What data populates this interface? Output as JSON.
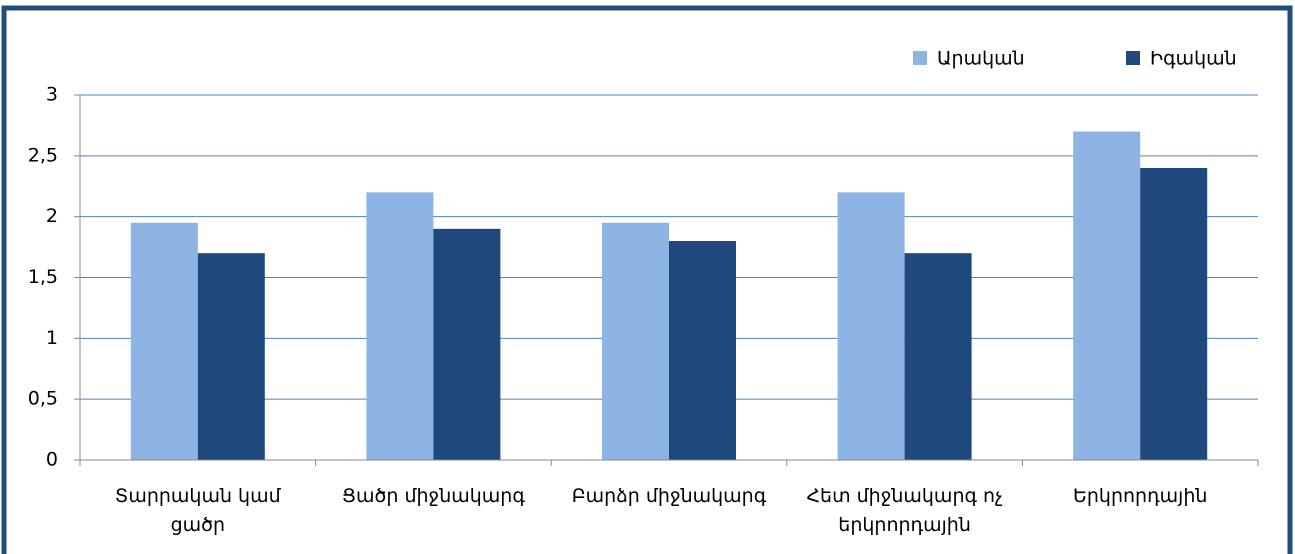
{
  "chart_data": {
    "type": "bar",
    "categories": [
      "Տարրական կամ ցածր",
      "Ցածր միջնակարգ",
      "Բարձր միջնակարգ",
      "Հետ միջնակարգ ոչ երկրորդային",
      "Երկրորդային"
    ],
    "series": [
      {
        "name": "Արական",
        "color": "#8eb4e3",
        "values": [
          1.95,
          2.2,
          1.95,
          2.2,
          2.7
        ]
      },
      {
        "name": "Իգական",
        "color": "#1f497d",
        "values": [
          1.7,
          1.9,
          1.8,
          1.7,
          2.4
        ]
      }
    ],
    "ylim": [
      0,
      3
    ],
    "yticks": [
      0,
      {
        "value": 0.5,
        "label": "0,5"
      },
      1,
      {
        "value": 1.5,
        "label": "1,5"
      },
      2,
      {
        "value": 2.5,
        "label": "2,5"
      },
      3
    ],
    "grid": true,
    "legend": "top-right"
  }
}
